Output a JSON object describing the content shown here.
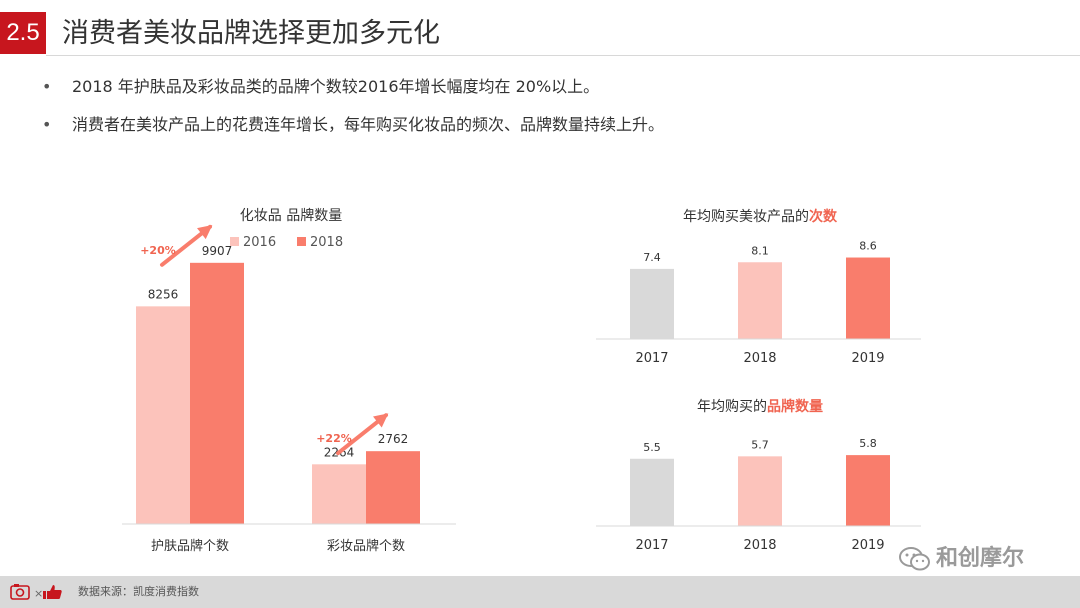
{
  "header": {
    "section_number": "2.5",
    "title": "消费者美妆品牌选择更加多元化"
  },
  "bullets": [
    "2018 年护肤品及彩妆品类的品牌个数较2016年增长幅度均在 20%以上。",
    "消费者在美妆产品上的花费连年增长，每年购买化妆品的频次、品牌数量持续上升。"
  ],
  "colors": {
    "brand_red": "#c7161e",
    "light_pink": "#fcc3bb",
    "salmon": "#f97d6c",
    "gray_bar": "#d9d9d9",
    "accent_text": "#f06450"
  },
  "chart_data": [
    {
      "type": "bar",
      "title": "化妆品 品牌数量",
      "categories": [
        "护肤品牌个数",
        "彩妆品牌个数"
      ],
      "series": [
        {
          "name": "2016",
          "values": [
            8256,
            2264
          ]
        },
        {
          "name": "2018",
          "values": [
            9907,
            2762
          ]
        }
      ],
      "annotations": [
        "+20%",
        "+22%"
      ],
      "legend": "top-center",
      "ylim": [
        0,
        11000
      ],
      "grid": false
    },
    {
      "type": "bar",
      "title_prefix": "年均购买美妆产品的",
      "title_highlight": "次数",
      "categories": [
        "2017",
        "2018",
        "2019"
      ],
      "values": [
        7.4,
        8.1,
        8.6
      ],
      "ylim": [
        0,
        9.5
      ],
      "grid": false
    },
    {
      "type": "bar",
      "title_prefix": "年均购买的",
      "title_highlight": "品牌数量",
      "categories": [
        "2017",
        "2018",
        "2019"
      ],
      "values": [
        5.5,
        5.7,
        5.8
      ],
      "ylim": [
        0,
        7.2
      ],
      "grid": false
    }
  ],
  "footer": {
    "source": "数据来源：凯度消费指数"
  },
  "watermark": {
    "text": "和创摩尔"
  }
}
